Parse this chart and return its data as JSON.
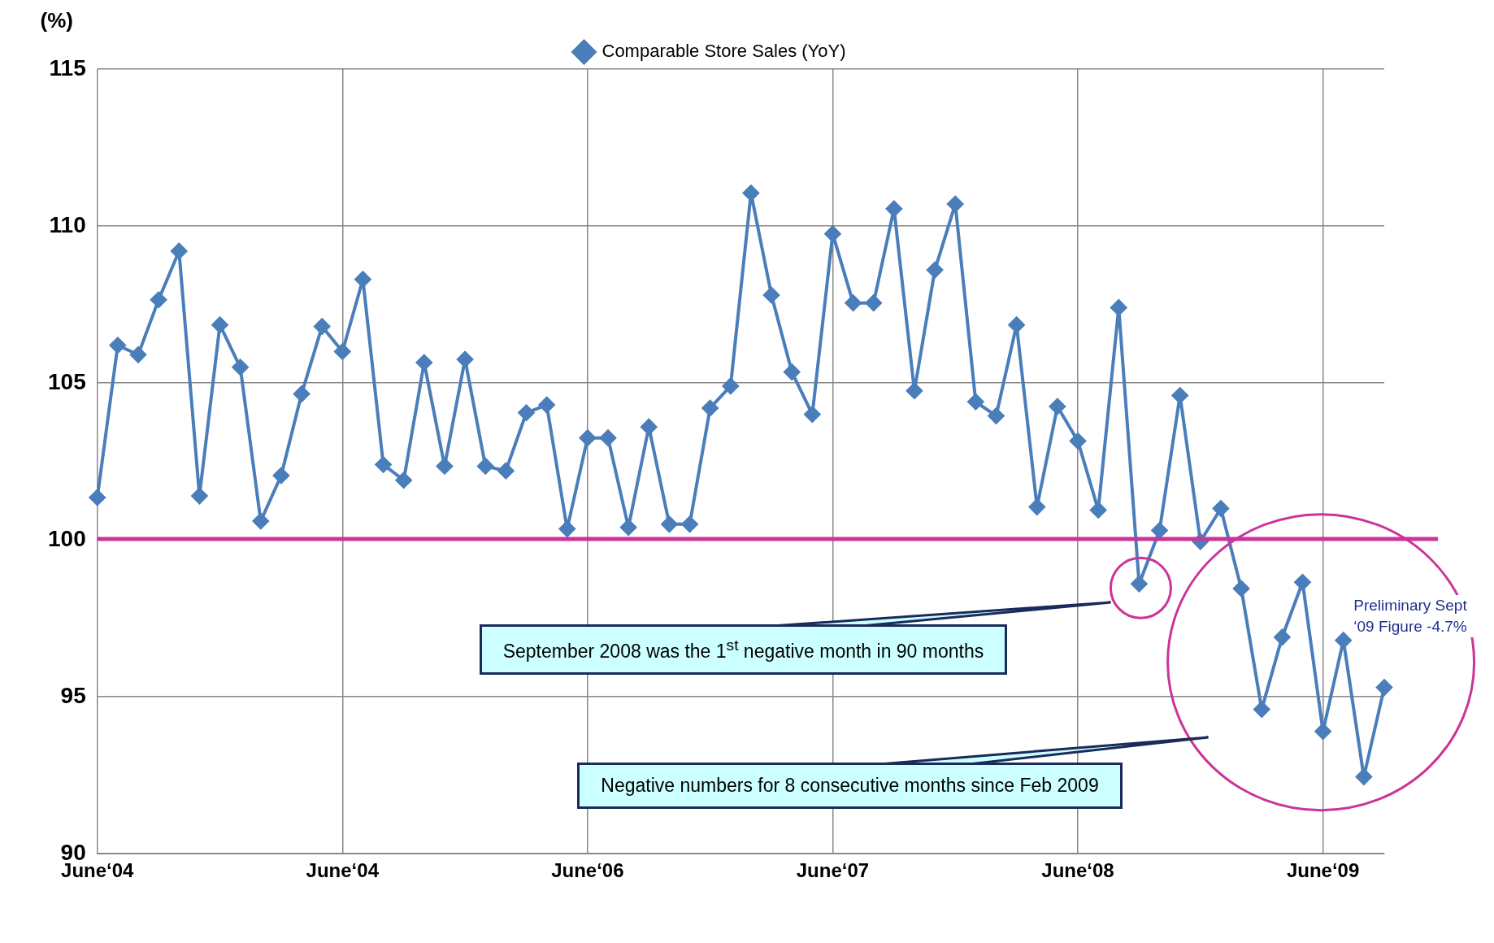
{
  "chart_data": {
    "type": "line",
    "ylabel": "(%)",
    "categories": [
      "June‘04",
      null,
      null,
      null,
      null,
      null,
      null,
      null,
      null,
      null,
      null,
      null,
      "June‘04",
      null,
      null,
      null,
      null,
      null,
      null,
      null,
      null,
      null,
      null,
      null,
      "June‘06",
      null,
      null,
      null,
      null,
      null,
      null,
      null,
      null,
      null,
      null,
      null,
      "June‘07",
      null,
      null,
      null,
      null,
      null,
      null,
      null,
      null,
      null,
      null,
      null,
      "June‘08",
      null,
      null,
      null,
      null,
      null,
      null,
      null,
      null,
      null,
      null,
      null,
      "June‘09",
      null,
      null,
      null
    ],
    "series": [
      {
        "name": "Comparable Store Sales (YoY)",
        "color": "#4a7ebb",
        "values": [
          101.35,
          106.2,
          105.9,
          107.65,
          109.2,
          101.4,
          106.85,
          105.5,
          100.6,
          102.05,
          104.65,
          106.8,
          106.0,
          108.3,
          102.4,
          101.9,
          105.65,
          102.35,
          105.75,
          102.35,
          102.2,
          104.05,
          104.3,
          100.35,
          103.25,
          103.25,
          100.4,
          103.6,
          100.5,
          100.5,
          104.2,
          104.9,
          111.05,
          107.8,
          105.35,
          104.0,
          109.75,
          107.55,
          107.55,
          110.55,
          104.75,
          108.6,
          110.7,
          104.4,
          103.95,
          106.85,
          101.05,
          104.25,
          103.15,
          100.95,
          107.4,
          98.6,
          100.3,
          104.6,
          99.95,
          101.0,
          98.45,
          94.6,
          96.9,
          98.65,
          93.9,
          96.8,
          92.45,
          95.3
        ]
      }
    ],
    "ylim": [
      90,
      115
    ],
    "yticks": [
      90,
      95,
      100,
      105,
      110,
      115
    ],
    "grid": true,
    "legend": "top",
    "marker": "diamond",
    "line_style": "solid",
    "ref_lines": [
      {
        "axis": "y",
        "value": 100,
        "color": "#cc3399"
      }
    ],
    "annotations": [
      "September 2008 was the 1$^{st}$ negative month in 90 months",
      "Negative numbers for 8 consecutive months since Feb 2009",
      "Preliminary Sept ‘09 Figure -4.7%"
    ]
  }
}
